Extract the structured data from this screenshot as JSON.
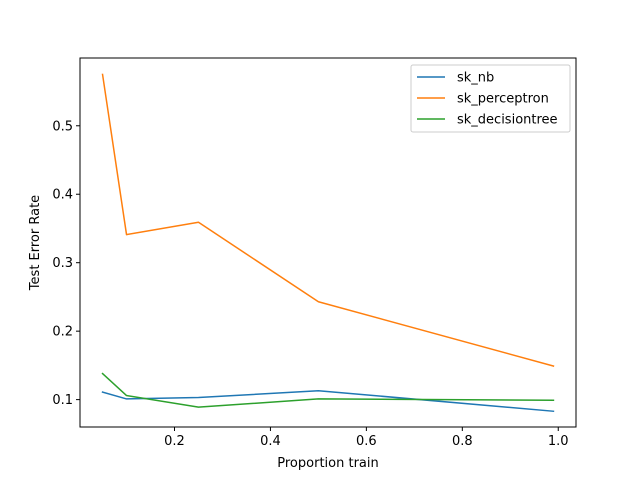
{
  "chart_data": {
    "type": "line",
    "xlabel": "Proportion train",
    "ylabel": "Test Error Rate",
    "xlim": [
      0.003,
      1.037
    ],
    "ylim": [
      0.06,
      0.599
    ],
    "xticks": [
      0.2,
      0.4,
      0.6,
      0.8,
      1.0
    ],
    "xtick_labels": [
      "0.2",
      "0.4",
      "0.6",
      "0.8",
      "1.0"
    ],
    "yticks": [
      0.1,
      0.2,
      0.3,
      0.4,
      0.5
    ],
    "ytick_labels": [
      "0.1",
      "0.2",
      "0.3",
      "0.4",
      "0.5"
    ],
    "grid": false,
    "legend_position": "top-right",
    "series": [
      {
        "name": "sk_nb",
        "color": "#1f77b4",
        "x": [
          0.05,
          0.1,
          0.25,
          0.5,
          0.99
        ],
        "y": [
          0.111,
          0.101,
          0.103,
          0.113,
          0.083
        ]
      },
      {
        "name": "sk_perceptron",
        "color": "#ff7f0e",
        "x": [
          0.05,
          0.1,
          0.25,
          0.5,
          0.99
        ],
        "y": [
          0.575,
          0.341,
          0.359,
          0.243,
          0.149
        ]
      },
      {
        "name": "sk_decisiontree",
        "color": "#2ca02c",
        "x": [
          0.05,
          0.1,
          0.25,
          0.5,
          0.99
        ],
        "y": [
          0.138,
          0.106,
          0.089,
          0.101,
          0.099
        ]
      }
    ]
  }
}
